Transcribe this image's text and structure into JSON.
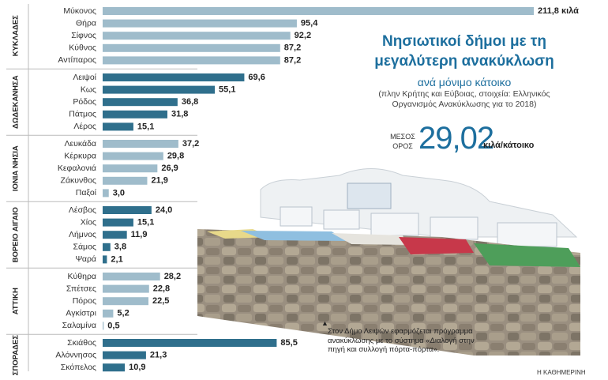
{
  "chart_data": {
    "type": "bar",
    "orientation": "horizontal",
    "title": "Νησιωτικοί δήμοι με τη μεγαλύτερη ανακύκλωση",
    "subtitle": "ανά μόνιμο κάτοικο",
    "note": "(πλην Κρήτης και Εύβοιας, στοιχεία: Ελληνικός Οργανισμός Ανακύκλωσης για το 2018)",
    "average": {
      "label_lines": [
        "ΜΕΣΟΣ",
        "ΟΡΟΣ"
      ],
      "value": "29,02",
      "unit": "κιλά/κάτοικο"
    },
    "caption": "Στον Δήμο Λειψών εφαρμόζεται πρόγραμμα ανακύκλωσης με το σύστημα «Διαλογή στην πηγή και συλλογή πόρτα-πόρτα».",
    "source": "Η ΚΑΘΗΜΕΡΙΝΗ",
    "groups": [
      {
        "name": "ΚΥΚΛΑΔΕΣ",
        "color": "#9fbccb",
        "categories": [
          "Μύκονος",
          "Θήρα",
          "Σίφνος",
          "Κύθνος",
          "Αντίπαρος"
        ],
        "values": [
          211.8,
          95.4,
          92.2,
          87.2,
          87.2
        ],
        "value_labels": [
          "211,8 κιλά",
          "95,4",
          "92,2",
          "87,2",
          "87,2"
        ]
      },
      {
        "name": "ΔΩΔΕΚΑΝΗΣΑ",
        "color": "#2f6f8c",
        "categories": [
          "Λειψοί",
          "Κως",
          "Ρόδος",
          "Πάτμος",
          "Λέρος"
        ],
        "values": [
          69.6,
          55.1,
          36.8,
          31.8,
          15.1
        ],
        "value_labels": [
          "69,6",
          "55,1",
          "36,8",
          "31,8",
          "15,1"
        ]
      },
      {
        "name": "ΙΟΝΙΑ ΝΗΣΙΑ",
        "color": "#9fbccb",
        "categories": [
          "Λευκάδα",
          "Κέρκυρα",
          "Κεφαλονιά",
          "Ζάκυνθος",
          "Παξοί"
        ],
        "values": [
          37.2,
          29.8,
          26.9,
          21.9,
          3.0
        ],
        "value_labels": [
          "37,2",
          "29,8",
          "26,9",
          "21,9",
          "3,0"
        ]
      },
      {
        "name": "ΒΟΡΕΙΟ ΑΙΓΑΙΟ",
        "color": "#2f6f8c",
        "categories": [
          "Λέσβος",
          "Χίος",
          "Λήμνος",
          "Σάμος",
          "Ψαρά"
        ],
        "values": [
          24.0,
          15.1,
          11.9,
          3.8,
          2.1
        ],
        "value_labels": [
          "24,0",
          "15,1",
          "11,9",
          "3,8",
          "2,1"
        ]
      },
      {
        "name": "ΑΤΤΙΚΗ",
        "color": "#9fbccb",
        "categories": [
          "Κύθηρα",
          "Σπέτσες",
          "Πόρος",
          "Αγκίστρι",
          "Σαλαμίνα"
        ],
        "values": [
          28.2,
          22.8,
          22.5,
          5.2,
          0.5
        ],
        "value_labels": [
          "28,2",
          "22,8",
          "22,5",
          "5,2",
          "0,5"
        ]
      },
      {
        "name": "ΣΠΟΡΑΔΕΣ",
        "color": "#2f6f8c",
        "categories": [
          "Σκιάθος",
          "Αλόννησος",
          "Σκόπελος"
        ],
        "values": [
          85.5,
          21.3,
          10.9
        ],
        "value_labels": [
          "85,5",
          "21,3",
          "10,9"
        ]
      }
    ]
  }
}
